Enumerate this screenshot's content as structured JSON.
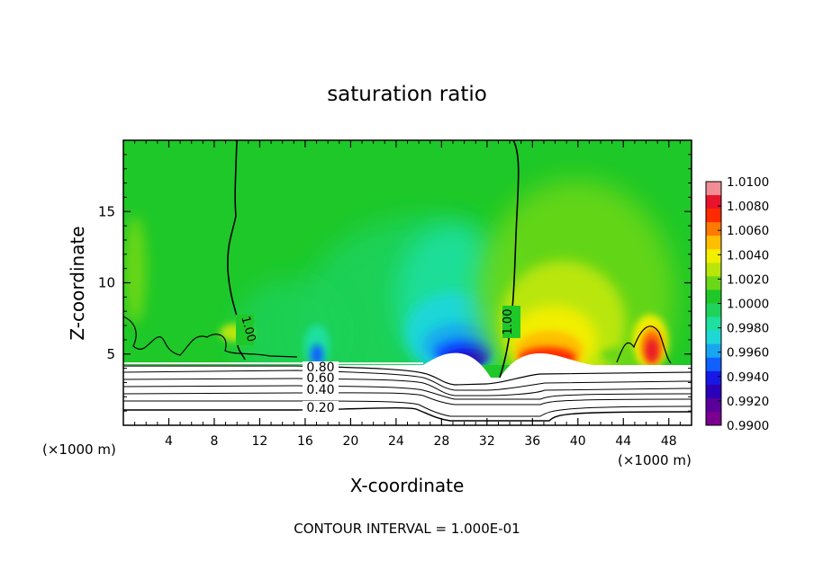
{
  "chart_data": {
    "type": "heatmap",
    "title": "saturation ratio",
    "xlabel": "X-coordinate",
    "ylabel": "Z-coordinate",
    "x_unit_label": "(×1000 m)",
    "x_unit_label_right": "(×1000 m)",
    "xlim": [
      0,
      50
    ],
    "ylim": [
      0,
      20
    ],
    "x_ticks": [
      "4",
      "8",
      "12",
      "16",
      "20",
      "24",
      "28",
      "32",
      "36",
      "40",
      "44",
      "48"
    ],
    "y_ticks": [
      "5",
      "10",
      "15"
    ],
    "footer": "CONTOUR INTERVAL = 1.000E-01",
    "colorbar": {
      "labels": [
        "1.0100",
        "1.0080",
        "1.0060",
        "1.0040",
        "1.0020",
        "1.0000",
        "0.9980",
        "0.9960",
        "0.9940",
        "0.9920",
        "0.9900"
      ],
      "colors": [
        "#f08d95",
        "#e8142b",
        "#ff2a00",
        "#ff7a00",
        "#ffbf00",
        "#f2ee00",
        "#b9e60a",
        "#6ad717",
        "#1ec828",
        "#1ed25a",
        "#1ee0a0",
        "#1ed7d7",
        "#18a6f0",
        "#1060ff",
        "#1818e6",
        "#2a00b8",
        "#5a009a",
        "#7a0090"
      ]
    },
    "contour_labels": [
      "1.00",
      "1.00",
      "0.80",
      "0.60",
      "0.40",
      "0.20"
    ],
    "contour_interval": 0.1
  }
}
